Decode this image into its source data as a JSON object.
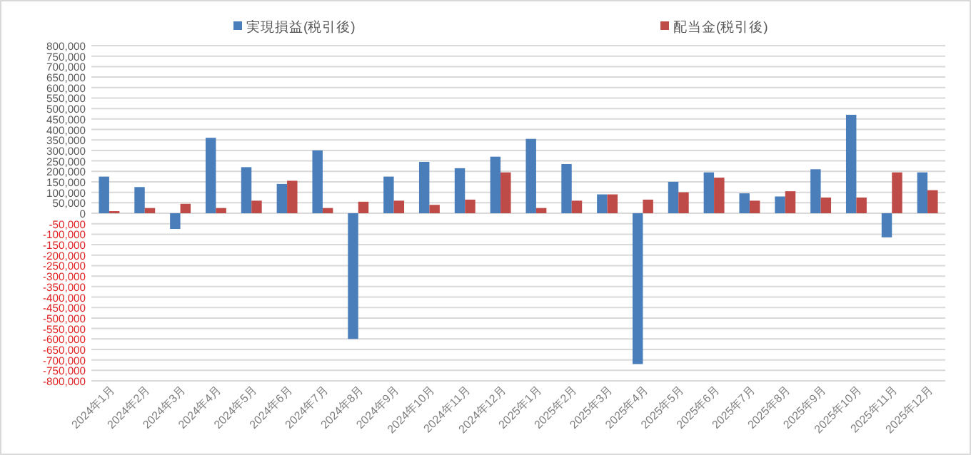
{
  "chart_data": {
    "type": "bar",
    "legend": "top",
    "grid": "y",
    "categories": [
      "2024年1月",
      "2024年2月",
      "2024年3月",
      "2024年4月",
      "2024年5月",
      "2024年6月",
      "2024年7月",
      "2024年8月",
      "2024年9月",
      "2024年10月",
      "2024年11月",
      "2024年12月",
      "2025年1月",
      "2025年2月",
      "2025年3月",
      "2025年4月",
      "2025年5月",
      "2025年6月",
      "2025年7月",
      "2025年8月",
      "2025年9月",
      "2025年10月",
      "2025年11月",
      "2025年12月"
    ],
    "series": [
      {
        "name": "実現損益(税引後)",
        "color": "#4a7ebb",
        "values": [
          175000,
          125000,
          -75000,
          360000,
          220000,
          140000,
          300000,
          -600000,
          175000,
          245000,
          215000,
          270000,
          355000,
          235000,
          90000,
          -720000,
          150000,
          195000,
          95000,
          80000,
          210000,
          470000,
          -115000,
          195000
        ]
      },
      {
        "name": "配当金(税引後)",
        "color": "#be4b48",
        "values": [
          10000,
          25000,
          45000,
          25000,
          60000,
          155000,
          25000,
          55000,
          60000,
          40000,
          65000,
          195000,
          25000,
          60000,
          90000,
          65000,
          100000,
          170000,
          60000,
          105000,
          75000,
          75000,
          195000,
          110000
        ]
      }
    ],
    "ylim": [
      -800000,
      800000
    ],
    "yticks": [
      {
        "value": -800000,
        "label": "-800,000"
      },
      {
        "value": -750000,
        "label": "-750,000"
      },
      {
        "value": -700000,
        "label": "-700,000"
      },
      {
        "value": -650000,
        "label": "-650,000"
      },
      {
        "value": -600000,
        "label": "-600,000"
      },
      {
        "value": -550000,
        "label": "-550,000"
      },
      {
        "value": -500000,
        "label": "-500,000"
      },
      {
        "value": -450000,
        "label": "-450,000"
      },
      {
        "value": -400000,
        "label": "-400,000"
      },
      {
        "value": -350000,
        "label": "-350,000"
      },
      {
        "value": -300000,
        "label": "-300,000"
      },
      {
        "value": -250000,
        "label": "-250,000"
      },
      {
        "value": -200000,
        "label": "-200,000"
      },
      {
        "value": -150000,
        "label": "-150,000"
      },
      {
        "value": -100000,
        "label": "-100,000"
      },
      {
        "value": -50000,
        "label": "-50,000"
      },
      0,
      {
        "value": 50000,
        "label": "50,000"
      },
      {
        "value": 100000,
        "label": "100,000"
      },
      {
        "value": 150000,
        "label": "150,000"
      },
      {
        "value": 200000,
        "label": "200,000"
      },
      {
        "value": 250000,
        "label": "250,000"
      },
      {
        "value": 300000,
        "label": "300,000"
      },
      {
        "value": 350000,
        "label": "350,000"
      },
      {
        "value": 400000,
        "label": "400,000"
      },
      {
        "value": 450000,
        "label": "450,000"
      },
      {
        "value": 500000,
        "label": "500,000"
      },
      {
        "value": 550000,
        "label": "550,000"
      },
      {
        "value": 600000,
        "label": "600,000"
      },
      {
        "value": 650000,
        "label": "650,000"
      },
      {
        "value": 700000,
        "label": "700,000"
      },
      {
        "value": 750000,
        "label": "750,000"
      },
      {
        "value": 800000,
        "label": "800,000"
      }
    ]
  }
}
